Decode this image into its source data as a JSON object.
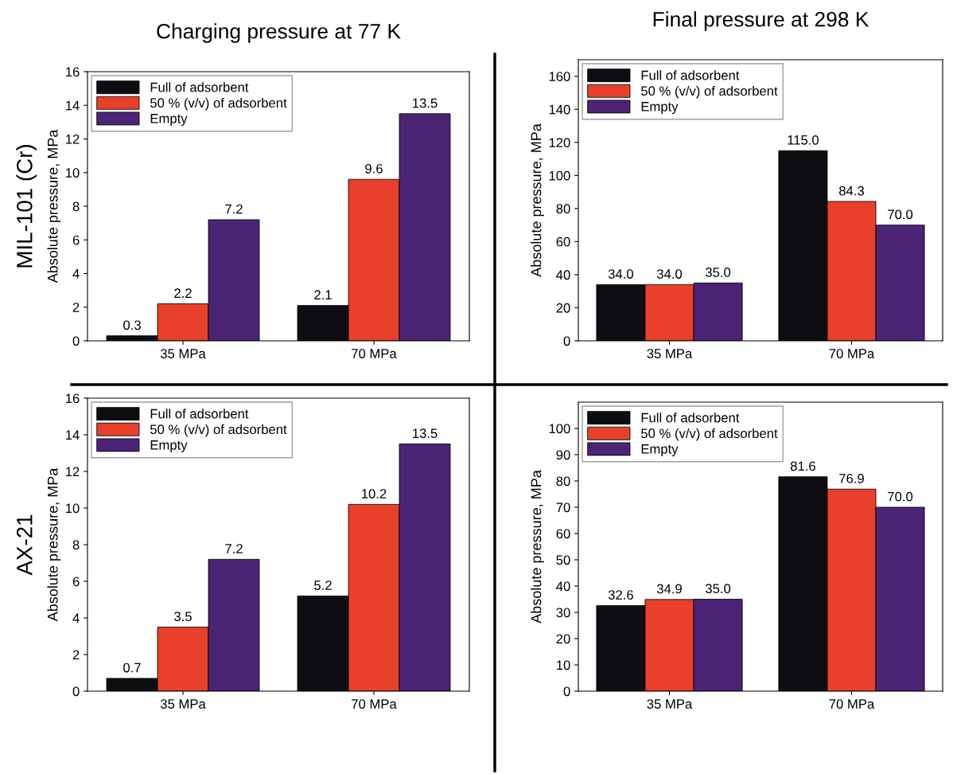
{
  "chart_data": [
    {
      "type": "bar",
      "title": "Charging pressure at 77 K",
      "annotations": [
        "MIL-101 (Cr)"
      ],
      "ylabel": "Absolute pressure, MPa",
      "categories": [
        "35 MPa",
        "70 MPa"
      ],
      "ylim": [
        0,
        16
      ],
      "yticks": [
        0,
        2,
        4,
        6,
        8,
        10,
        12,
        14,
        16
      ],
      "legend": "top left",
      "series": [
        {
          "name": "Full of adsorbent",
          "color": "#0d0d12",
          "values": [
            0.3,
            2.1
          ],
          "value_labels": [
            "0.3",
            "2.1"
          ]
        },
        {
          "name": "50 % (v/v) of adsorbent",
          "color": "#e8402a",
          "values": [
            2.2,
            9.6
          ],
          "value_labels": [
            "2.2",
            "9.6"
          ]
        },
        {
          "name": "Empty",
          "color": "#4b2475",
          "values": [
            7.2,
            13.5
          ],
          "value_labels": [
            "7.2",
            "13.5"
          ]
        }
      ]
    },
    {
      "type": "bar",
      "title": "Final pressure at 298 K",
      "ylabel": "Absolute pressure, MPa",
      "categories": [
        "35 MPa",
        "70 MPa"
      ],
      "ylim": [
        0,
        170
      ],
      "yticks": [
        0,
        20,
        40,
        60,
        80,
        100,
        120,
        140,
        160
      ],
      "legend": "top left",
      "series": [
        {
          "name": "Full of adsorbent",
          "color": "#0d0d12",
          "values": [
            34.0,
            115.0
          ],
          "value_labels": [
            "34.0",
            "115.0"
          ]
        },
        {
          "name": "50 % (v/v) of adsorbent",
          "color": "#e8402a",
          "values": [
            34.0,
            84.3
          ],
          "value_labels": [
            "34.0",
            "84.3"
          ]
        },
        {
          "name": "Empty",
          "color": "#4b2475",
          "values": [
            35.0,
            70.0
          ],
          "value_labels": [
            "35.0",
            "70.0"
          ]
        }
      ]
    },
    {
      "type": "bar",
      "annotations": [
        "AX-21"
      ],
      "ylabel": "Absolute pressure, MPa",
      "categories": [
        "35 MPa",
        "70 MPa"
      ],
      "ylim": [
        0,
        16
      ],
      "yticks": [
        0,
        2,
        4,
        6,
        8,
        10,
        12,
        14,
        16
      ],
      "legend": "top left",
      "series": [
        {
          "name": "Full of adsorbent",
          "color": "#0d0d12",
          "values": [
            0.7,
            5.2
          ],
          "value_labels": [
            "0.7",
            "5.2"
          ]
        },
        {
          "name": "50 % (v/v) of adsorbent",
          "color": "#e8402a",
          "values": [
            3.5,
            10.2
          ],
          "value_labels": [
            "3.5",
            "10.2"
          ]
        },
        {
          "name": "Empty",
          "color": "#4b2475",
          "values": [
            7.2,
            13.5
          ],
          "value_labels": [
            "7.2",
            "13.5"
          ]
        }
      ]
    },
    {
      "type": "bar",
      "ylabel": "Absolute pressure, MPa",
      "categories": [
        "35 MPa",
        "70 MPa"
      ],
      "ylim": [
        0,
        110
      ],
      "yticks": [
        0,
        10,
        20,
        30,
        40,
        50,
        60,
        70,
        80,
        90,
        100
      ],
      "legend": "top left",
      "series": [
        {
          "name": "Full of adsorbent",
          "color": "#0d0d12",
          "values": [
            32.6,
            81.6
          ],
          "value_labels": [
            "32.6",
            "81.6"
          ]
        },
        {
          "name": "50 % (v/v) of adsorbent",
          "color": "#e8402a",
          "values": [
            34.9,
            76.9
          ],
          "value_labels": [
            "34.9",
            "76.9"
          ]
        },
        {
          "name": "Empty",
          "color": "#4b2475",
          "values": [
            35.0,
            70.0
          ],
          "value_labels": [
            "35.0",
            "70.0"
          ]
        }
      ]
    }
  ]
}
